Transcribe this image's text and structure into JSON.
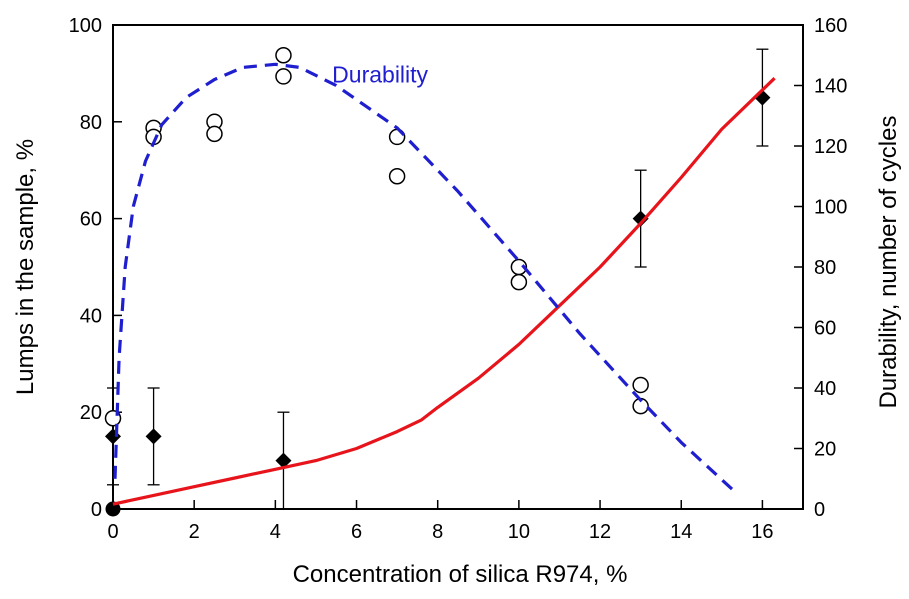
{
  "chart_data": {
    "type": "scatter",
    "title": "",
    "xlabel": "Concentration of silica R974, %",
    "ylabel": "Lumps in the sample, %",
    "y2label": "Durability, number of cycles",
    "xlim": [
      0,
      17
    ],
    "ylim": [
      0,
      100
    ],
    "y2lim": [
      0,
      160
    ],
    "xticks": [
      0,
      2,
      4,
      6,
      8,
      10,
      12,
      14,
      16
    ],
    "yticks": [
      0,
      20,
      40,
      60,
      80,
      100
    ],
    "y2ticks": [
      0,
      20,
      40,
      60,
      80,
      100,
      120,
      140,
      160
    ],
    "grid": false,
    "legend": "none",
    "annotations": [
      {
        "text": "Durability",
        "x": 5.4,
        "y2": 141,
        "color": "#1f1fd0"
      }
    ],
    "series": [
      {
        "kind": "markers",
        "marker": "filled-diamond",
        "axis": "y",
        "color": "#000000",
        "points": [
          {
            "x": 0,
            "y": 15,
            "err": 10
          },
          {
            "x": 1,
            "y": 15,
            "err": 10
          },
          {
            "x": 4.2,
            "y": 10,
            "err": 10
          },
          {
            "x": 13,
            "y": 60,
            "err": 10
          },
          {
            "x": 16,
            "y": 85,
            "err": 10
          }
        ]
      },
      {
        "kind": "markers",
        "marker": "filled-circle",
        "axis": "y",
        "color": "#000000",
        "points": [
          {
            "x": 0,
            "y": 0
          }
        ]
      },
      {
        "kind": "line",
        "style": "solid",
        "axis": "y",
        "color": "#e8141b",
        "points": [
          {
            "x": 0,
            "y": 1
          },
          {
            "x": 1,
            "y": 2.8
          },
          {
            "x": 2,
            "y": 4.6
          },
          {
            "x": 3,
            "y": 6.4
          },
          {
            "x": 4,
            "y": 8.2
          },
          {
            "x": 5,
            "y": 10
          },
          {
            "x": 6,
            "y": 12.5
          },
          {
            "x": 7,
            "y": 16
          },
          {
            "x": 7.6,
            "y": 18.4
          },
          {
            "x": 8,
            "y": 21
          },
          {
            "x": 9,
            "y": 27
          },
          {
            "x": 10,
            "y": 34
          },
          {
            "x": 11,
            "y": 42
          },
          {
            "x": 12,
            "y": 50
          },
          {
            "x": 13,
            "y": 59
          },
          {
            "x": 14,
            "y": 68.5
          },
          {
            "x": 15,
            "y": 78.5
          },
          {
            "x": 16.3,
            "y": 89
          }
        ]
      },
      {
        "kind": "markers",
        "marker": "open-circle",
        "axis": "y2",
        "color": "#000000",
        "points": [
          {
            "x": 0,
            "y2": 30
          },
          {
            "x": 1,
            "y2": 126
          },
          {
            "x": 1,
            "y2": 123
          },
          {
            "x": 2.5,
            "y2": 128
          },
          {
            "x": 2.5,
            "y2": 124
          },
          {
            "x": 4.2,
            "y2": 150
          },
          {
            "x": 4.2,
            "y2": 143
          },
          {
            "x": 7,
            "y2": 123
          },
          {
            "x": 7,
            "y2": 110
          },
          {
            "x": 10,
            "y2": 80
          },
          {
            "x": 10,
            "y2": 75
          },
          {
            "x": 13,
            "y2": 41
          },
          {
            "x": 13,
            "y2": 34
          }
        ]
      },
      {
        "kind": "line",
        "style": "dashed",
        "axis": "y2",
        "color": "#1f1fd0",
        "points": [
          {
            "x": 0.05,
            "y2": 10
          },
          {
            "x": 0.15,
            "y2": 50
          },
          {
            "x": 0.3,
            "y2": 80
          },
          {
            "x": 0.5,
            "y2": 100
          },
          {
            "x": 0.8,
            "y2": 115
          },
          {
            "x": 1.2,
            "y2": 127
          },
          {
            "x": 1.8,
            "y2": 136
          },
          {
            "x": 2.5,
            "y2": 142
          },
          {
            "x": 3.2,
            "y2": 146
          },
          {
            "x": 4,
            "y2": 147
          },
          {
            "x": 4.6,
            "y2": 146
          },
          {
            "x": 5.5,
            "y2": 140
          },
          {
            "x": 7,
            "y2": 126
          },
          {
            "x": 8.5,
            "y2": 105
          },
          {
            "x": 10,
            "y2": 82
          },
          {
            "x": 11.5,
            "y2": 58
          },
          {
            "x": 13,
            "y2": 36
          },
          {
            "x": 14,
            "y2": 22
          },
          {
            "x": 15.3,
            "y2": 6
          }
        ]
      }
    ]
  }
}
